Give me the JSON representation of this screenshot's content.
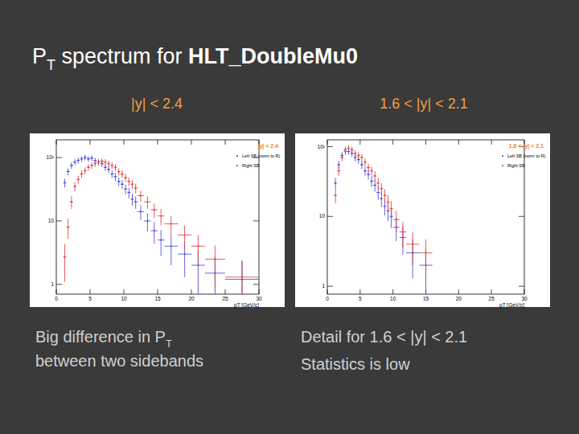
{
  "title": [
    {
      "text": "P"
    },
    {
      "text": "T",
      "subscript": true
    },
    {
      "text": " spectrum for "
    },
    {
      "text": "HLT_DoubleMu0",
      "bold": true
    }
  ],
  "headings": [
    "|y| < 2.4",
    "1.6 < |y| < 2.1"
  ],
  "captions": [
    [
      [
        {
          "text": "Big difference in P"
        },
        {
          "text": "T",
          "subscript": true
        }
      ],
      [
        {
          "text": "between two sidebands"
        }
      ]
    ],
    [
      [
        {
          "text": "Detail for 1.6 < |y| < 2.1"
        }
      ],
      [
        {
          "text": "Statistics is low"
        }
      ]
    ]
  ],
  "chart_data": [
    {
      "type": "histogram",
      "title": "|y| < 2.4",
      "x_label": "pT [GeV/c]",
      "bins": [
        1,
        1.5,
        2,
        2.5,
        3,
        3.5,
        4,
        4.5,
        5,
        5.5,
        6,
        6.5,
        7,
        7.5,
        8,
        8.5,
        9,
        9.5,
        10,
        10.5,
        11,
        11.5,
        12,
        13,
        14,
        15,
        16,
        18,
        20,
        22,
        25,
        30
      ],
      "series": [
        {
          "name": "Left SB (norm to R)",
          "color": "#3c3cdc",
          "marker": "point",
          "values": [
            40,
            60,
            75,
            85,
            90,
            95,
            100,
            95,
            98,
            90,
            85,
            80,
            70,
            65,
            55,
            50,
            42,
            38,
            32,
            28,
            22,
            20,
            14,
            10,
            7,
            5,
            4,
            3,
            2,
            1.5,
            1.2
          ],
          "errors": [
            6.3,
            7.7,
            8.7,
            9.2,
            9.5,
            9.7,
            10,
            9.7,
            9.9,
            9.5,
            9.2,
            8.9,
            8.4,
            8.1,
            7.4,
            7.1,
            6.5,
            6.2,
            5.7,
            5.3,
            4.7,
            4.5,
            3.7,
            3.2,
            2.6,
            2.2,
            2,
            1.7,
            1.4,
            1.2,
            1.1
          ]
        },
        {
          "name": "Right SB",
          "color": "#e03232",
          "marker": "point",
          "values": [
            2.7,
            8,
            20,
            35,
            45,
            55,
            62,
            70,
            75,
            80,
            85,
            88,
            85,
            80,
            75,
            70,
            60,
            55,
            48,
            42,
            38,
            33,
            25,
            20,
            15,
            12,
            9,
            6,
            4,
            2.5,
            1.3
          ],
          "errors": [
            1.6,
            2.8,
            4.5,
            5.9,
            6.7,
            7.4,
            7.9,
            8.4,
            8.7,
            8.9,
            9.2,
            9.4,
            9.2,
            8.9,
            8.7,
            8.4,
            7.7,
            7.4,
            6.9,
            6.5,
            6.2,
            5.7,
            5,
            4.5,
            3.9,
            3.5,
            3,
            2.4,
            2,
            1.6,
            1.1
          ]
        }
      ],
      "xlim": [
        0,
        30
      ],
      "xticks": [
        0,
        5,
        10,
        15,
        20,
        25,
        30
      ],
      "ylim": [
        0.7,
        190
      ],
      "yticks": [
        1,
        10,
        {
          "value": 100,
          "label": "10²"
        }
      ],
      "log": "y",
      "grid": false,
      "legend": "top-right"
    },
    {
      "type": "histogram",
      "title": "1.6 < |y| < 2.1",
      "x_label": "pT [GeV/c]",
      "bins": [
        1,
        1.5,
        2,
        2.5,
        3,
        3.5,
        4,
        4.5,
        5,
        5.5,
        6,
        6.5,
        7,
        7.5,
        8,
        8.5,
        9,
        9.5,
        10,
        11,
        12,
        14,
        16
      ],
      "series": [
        {
          "name": "Left SB (norm to R)",
          "color": "#3c3cdc",
          "marker": "point",
          "values": [
            30,
            55,
            75,
            90,
            85,
            80,
            70,
            65,
            55,
            45,
            40,
            32,
            28,
            22,
            18,
            14,
            12,
            10,
            7,
            5,
            3,
            2
          ],
          "errors": [
            5.5,
            7.4,
            8.7,
            9.5,
            9.2,
            8.9,
            8.4,
            8.1,
            7.4,
            6.7,
            6.3,
            5.7,
            5.3,
            4.7,
            4.2,
            3.7,
            3.5,
            3.2,
            2.6,
            2.2,
            1.7,
            1.4
          ]
        },
        {
          "name": "Right SB",
          "color": "#e03232",
          "marker": "point",
          "values": [
            20,
            45,
            70,
            85,
            95,
            90,
            80,
            75,
            70,
            60,
            50,
            45,
            38,
            30,
            25,
            20,
            16,
            13,
            9,
            6,
            4,
            3
          ],
          "errors": [
            4.5,
            6.7,
            8.4,
            9.2,
            9.7,
            9.5,
            8.9,
            8.7,
            8.4,
            7.7,
            7.1,
            6.7,
            6.2,
            5.5,
            5,
            4.5,
            4,
            3.6,
            3,
            2.4,
            2,
            1.7
          ]
        }
      ],
      "xlim": [
        0,
        30
      ],
      "xticks": [
        0,
        5,
        10,
        15,
        20,
        25,
        30
      ],
      "ylim": [
        0.77,
        125
      ],
      "yticks": [
        1,
        10,
        {
          "value": 100,
          "label": "10²"
        }
      ],
      "log": "y",
      "grid": false,
      "legend": "top-right"
    }
  ]
}
